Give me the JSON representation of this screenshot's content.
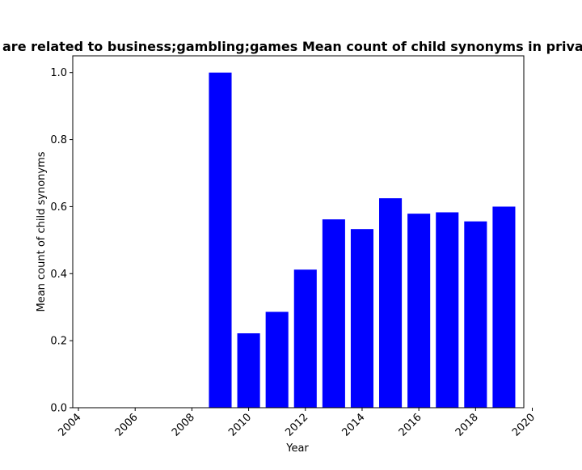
{
  "chart_data": {
    "type": "bar",
    "title": "are related to business;gambling;games Mean count of child synonyms in priva",
    "xlabel": "Year",
    "ylabel": "Mean count of child synonyms",
    "x": [
      2009,
      2010,
      2011,
      2012,
      2013,
      2014,
      2015,
      2016,
      2017,
      2018,
      2019
    ],
    "values": [
      1.0,
      0.222,
      0.286,
      0.412,
      0.562,
      0.533,
      0.625,
      0.579,
      0.583,
      0.556,
      0.6
    ],
    "xlim": [
      2003.8,
      2019.7
    ],
    "ylim": [
      0,
      1.05
    ],
    "xticks": [
      2004,
      2006,
      2008,
      2010,
      2012,
      2014,
      2016,
      2018,
      2020
    ],
    "xtick_labels": [
      "2004",
      "2006",
      "2008",
      "2010",
      "2012",
      "2014",
      "2016",
      "2018",
      "2020"
    ],
    "yticks": [
      0.0,
      0.2,
      0.4,
      0.6,
      0.8,
      1.0
    ],
    "ytick_labels": [
      "0.0",
      "0.2",
      "0.4",
      "0.6",
      "0.8",
      "1.0"
    ],
    "bar_color": "#0000ff",
    "grid": false,
    "legend": "none"
  }
}
